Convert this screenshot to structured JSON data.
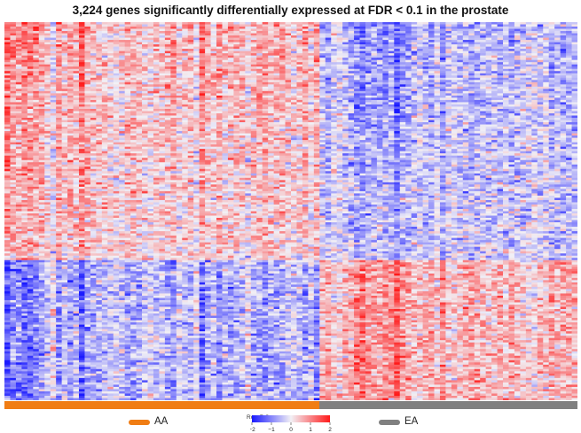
{
  "chart_data": {
    "type": "heatmap",
    "title": "3,224  genes significantly differentially expressed at FDR < 0.1 in the prostate",
    "value_label": "Row Z-Score",
    "color_scale": {
      "min": -2,
      "max": 2,
      "ticks": [
        "−2",
        "−1",
        "0",
        "1",
        "2"
      ],
      "low_color": "#1a1aff",
      "mid_color": "#f2f0f5",
      "high_color": "#ff1a1a"
    },
    "groups": [
      {
        "name": "AA",
        "color": "#f07d14",
        "samples": 55
      },
      {
        "name": "EA",
        "color": "#808080",
        "samples": 45
      }
    ],
    "gene_count": 3224,
    "gene_clusters": [
      {
        "name": "higher in AA",
        "fraction": 0.63
      },
      {
        "name": "higher in EA",
        "fraction": 0.37
      }
    ],
    "fdr_threshold": 0.1,
    "tissue": "prostate"
  }
}
